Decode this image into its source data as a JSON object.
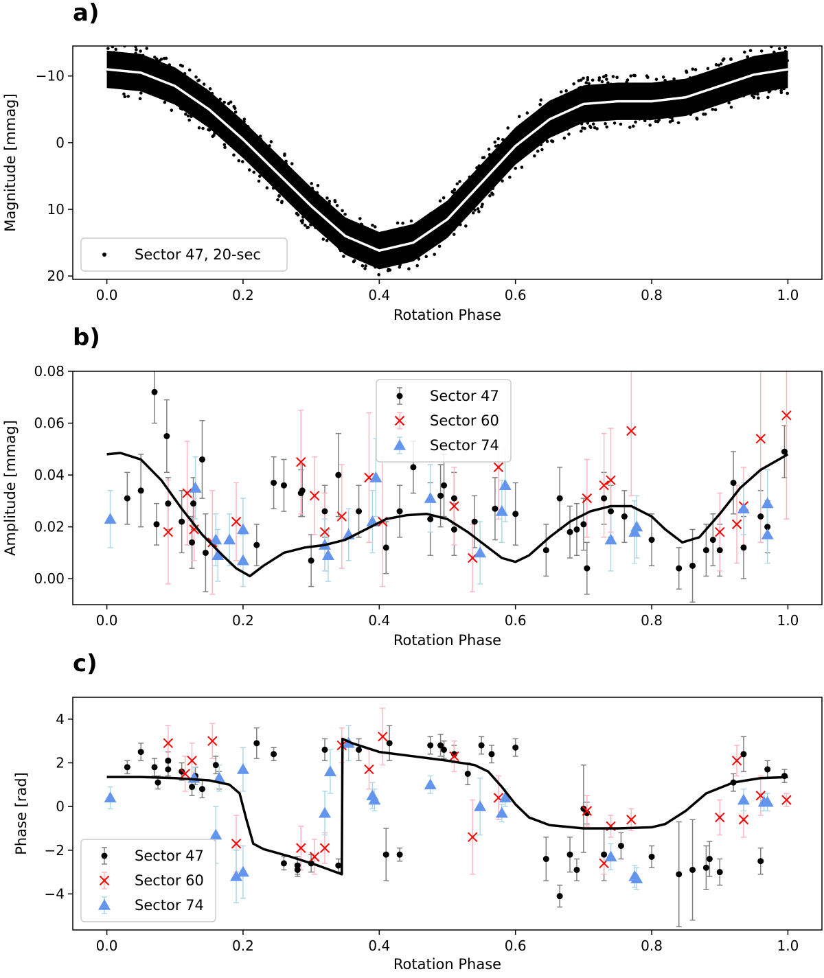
{
  "chart_data": [
    {
      "panel": "a)",
      "type": "scatter",
      "xlabel": "Rotation Phase",
      "ylabel": "Magnitude [mmag]",
      "xlim": [
        -0.05,
        1.05
      ],
      "ylim": [
        20.5,
        -14.5
      ],
      "y_inverted": true,
      "xticks": [
        0.0,
        0.2,
        0.4,
        0.6,
        0.8,
        1.0
      ],
      "xtick_labels": [
        "0.0",
        "0.2",
        "0.4",
        "0.6",
        "0.8",
        "1.0"
      ],
      "yticks": [
        -10,
        0,
        10,
        20
      ],
      "ytick_labels": [
        "−10",
        "0",
        "10",
        "20"
      ],
      "legend": {
        "placement": "lower-left",
        "entries": [
          "Sector 47, 20-sec"
        ]
      },
      "series": [
        {
          "name": "Sector 47, 20-sec",
          "style": "dense black points",
          "color": "#000000"
        }
      ],
      "model_curve": {
        "color": "#ffffff",
        "x": [
          0.0,
          0.05,
          0.1,
          0.15,
          0.2,
          0.25,
          0.3,
          0.35,
          0.4,
          0.45,
          0.5,
          0.55,
          0.6,
          0.65,
          0.7,
          0.75,
          0.8,
          0.85,
          0.9,
          0.95,
          1.0
        ],
        "y": [
          -11.0,
          -10.5,
          -8.5,
          -5.0,
          -0.5,
          4.5,
          9.5,
          14.0,
          16.2,
          15.0,
          11.5,
          6.0,
          0.5,
          -3.5,
          -5.8,
          -6.2,
          -6.2,
          -6.8,
          -8.5,
          -10.2,
          -11.0
        ]
      }
    },
    {
      "panel": "b)",
      "type": "scatter",
      "xlabel": "Rotation Phase",
      "ylabel": "Amplitude [mmag]",
      "xlim": [
        -0.05,
        1.05
      ],
      "ylim": [
        -0.01,
        0.08
      ],
      "xticks": [
        0.0,
        0.2,
        0.4,
        0.6,
        0.8,
        1.0
      ],
      "xtick_labels": [
        "0.0",
        "0.2",
        "0.4",
        "0.6",
        "0.8",
        "1.0"
      ],
      "yticks": [
        0.0,
        0.02,
        0.04,
        0.06,
        0.08
      ],
      "ytick_labels": [
        "0.00",
        "0.02",
        "0.04",
        "0.06",
        "0.08"
      ],
      "legend": {
        "placement": "upper-center",
        "entries": [
          "Sector 47",
          "Sector 60",
          "Sector 74"
        ]
      },
      "series": [
        {
          "name": "Sector 47",
          "marker": "dot",
          "color": "#000000",
          "errcolor": "#808080",
          "x": [
            0.03,
            0.05,
            0.07,
            0.073,
            0.088,
            0.09,
            0.11,
            0.125,
            0.127,
            0.14,
            0.145,
            0.22,
            0.245,
            0.26,
            0.285,
            0.287,
            0.3,
            0.32,
            0.34,
            0.37,
            0.41,
            0.43,
            0.45,
            0.475,
            0.49,
            0.495,
            0.51,
            0.51,
            0.54,
            0.57,
            0.6,
            0.645,
            0.665,
            0.68,
            0.69,
            0.7,
            0.705,
            0.73,
            0.74,
            0.76,
            0.8,
            0.84,
            0.86,
            0.88,
            0.89,
            0.9,
            0.92,
            0.935,
            0.96,
            0.97,
            0.995
          ],
          "y": [
            0.031,
            0.034,
            0.072,
            0.021,
            0.055,
            0.029,
            0.022,
            0.014,
            0.029,
            0.046,
            0.01,
            0.013,
            0.037,
            0.036,
            0.033,
            0.034,
            0.007,
            0.026,
            0.04,
            0.026,
            0.012,
            0.026,
            0.043,
            0.023,
            0.032,
            0.036,
            0.031,
            0.019,
            0.022,
            0.027,
            0.025,
            0.011,
            0.031,
            0.018,
            0.019,
            0.021,
            0.004,
            0.031,
            0.026,
            0.024,
            0.015,
            0.004,
            0.005,
            0.011,
            0.015,
            0.011,
            0.037,
            0.012,
            0.024,
            0.02,
            0.049
          ],
          "err": [
            0.01,
            0.014,
            0.012,
            0.008,
            0.014,
            0.01,
            0.012,
            0.01,
            0.01,
            0.015,
            0.015,
            0.008,
            0.01,
            0.01,
            0.009,
            0.01,
            0.01,
            0.01,
            0.016,
            0.01,
            0.01,
            0.01,
            0.01,
            0.014,
            0.012,
            0.012,
            0.01,
            0.01,
            0.01,
            0.012,
            0.012,
            0.01,
            0.012,
            0.01,
            0.01,
            0.01,
            0.01,
            0.01,
            0.01,
            0.01,
            0.01,
            0.008,
            0.014,
            0.01,
            0.01,
            0.01,
            0.012,
            0.012,
            0.01,
            0.01,
            0.01
          ]
        },
        {
          "name": "Sector 60",
          "marker": "x",
          "color": "#ff0000",
          "errcolor": "#ffb6c1",
          "x": [
            0.09,
            0.118,
            0.128,
            0.155,
            0.19,
            0.285,
            0.305,
            0.32,
            0.345,
            0.385,
            0.405,
            0.51,
            0.537,
            0.575,
            0.705,
            0.73,
            0.74,
            0.77,
            0.9,
            0.925,
            0.935,
            0.96,
            0.998
          ],
          "y": [
            0.018,
            0.033,
            0.019,
            0.014,
            0.022,
            0.045,
            0.032,
            0.018,
            0.024,
            0.039,
            0.022,
            0.028,
            0.008,
            0.043,
            0.031,
            0.036,
            0.038,
            0.057,
            0.018,
            0.021,
            0.028,
            0.054,
            0.063
          ],
          "err": [
            0.02,
            0.02,
            0.012,
            0.02,
            0.015,
            0.02,
            0.015,
            0.015,
            0.02,
            0.025,
            0.025,
            0.015,
            0.013,
            0.02,
            0.015,
            0.02,
            0.02,
            0.025,
            0.015,
            0.015,
            0.015,
            0.04,
            0.04
          ]
        },
        {
          "name": "Sector 74",
          "marker": "triangle",
          "color": "#6495ed",
          "errcolor": "#add8e6",
          "x": [
            0.005,
            0.13,
            0.16,
            0.163,
            0.18,
            0.2,
            0.2,
            0.32,
            0.325,
            0.355,
            0.39,
            0.395,
            0.475,
            0.548,
            0.58,
            0.585,
            0.74,
            0.775,
            0.778,
            0.935,
            0.97,
            0.97
          ],
          "y": [
            0.023,
            0.035,
            0.015,
            0.009,
            0.015,
            0.019,
            0.007,
            0.013,
            0.009,
            0.017,
            0.022,
            0.039,
            0.031,
            0.01,
            0.026,
            0.036,
            0.015,
            0.018,
            0.02,
            0.027,
            0.017,
            0.029
          ],
          "err": [
            0.011,
            0.012,
            0.01,
            0.01,
            0.01,
            0.012,
            0.01,
            0.01,
            0.01,
            0.01,
            0.012,
            0.015,
            0.013,
            0.012,
            0.012,
            0.014,
            0.012,
            0.012,
            0.012,
            0.01,
            0.011,
            0.013
          ]
        }
      ],
      "model_curve": {
        "color": "#000000",
        "x": [
          0.0,
          0.02,
          0.05,
          0.08,
          0.11,
          0.14,
          0.17,
          0.19,
          0.21,
          0.23,
          0.26,
          0.29,
          0.32,
          0.35,
          0.38,
          0.41,
          0.44,
          0.47,
          0.5,
          0.53,
          0.56,
          0.58,
          0.6,
          0.62,
          0.65,
          0.68,
          0.71,
          0.74,
          0.77,
          0.8,
          0.82,
          0.845,
          0.87,
          0.9,
          0.93,
          0.96,
          1.0
        ],
        "y": [
          0.048,
          0.0485,
          0.046,
          0.038,
          0.027,
          0.017,
          0.009,
          0.004,
          0.001,
          0.005,
          0.01,
          0.012,
          0.013,
          0.015,
          0.019,
          0.023,
          0.0245,
          0.025,
          0.023,
          0.018,
          0.012,
          0.008,
          0.0065,
          0.009,
          0.016,
          0.022,
          0.026,
          0.028,
          0.028,
          0.024,
          0.019,
          0.014,
          0.016,
          0.025,
          0.035,
          0.042,
          0.048
        ]
      }
    },
    {
      "panel": "c)",
      "type": "scatter",
      "xlabel": "Rotation Phase",
      "ylabel": "Phase [rad]",
      "xlim": [
        -0.05,
        1.05
      ],
      "ylim": [
        -5.65,
        5.0
      ],
      "xticks": [
        0.0,
        0.2,
        0.4,
        0.6,
        0.8,
        1.0
      ],
      "xtick_labels": [
        "0.0",
        "0.2",
        "0.4",
        "0.6",
        "0.8",
        "1.0"
      ],
      "yticks": [
        -4,
        -2,
        0,
        2,
        4
      ],
      "ytick_labels": [
        "−4",
        "−2",
        "0",
        "2",
        "4"
      ],
      "legend": {
        "placement": "lower-left",
        "entries": [
          "Sector 47",
          "Sector 60",
          "Sector 74"
        ]
      },
      "series": [
        {
          "name": "Sector 47",
          "marker": "dot",
          "color": "#000000",
          "errcolor": "#808080",
          "x": [
            0.03,
            0.05,
            0.07,
            0.075,
            0.09,
            0.09,
            0.11,
            0.125,
            0.13,
            0.14,
            0.16,
            0.165,
            0.22,
            0.245,
            0.26,
            0.28,
            0.28,
            0.3,
            0.32,
            0.34,
            0.37,
            0.41,
            0.415,
            0.43,
            0.475,
            0.49,
            0.495,
            0.51,
            0.53,
            0.55,
            0.565,
            0.6,
            0.645,
            0.665,
            0.68,
            0.69,
            0.7,
            0.705,
            0.73,
            0.755,
            0.8,
            0.84,
            0.86,
            0.88,
            0.885,
            0.9,
            0.92,
            0.935,
            0.96,
            0.97,
            0.995
          ],
          "y": [
            1.8,
            2.5,
            1.8,
            1.1,
            2.1,
            1.7,
            1.6,
            0.9,
            1.4,
            0.8,
            1.9,
            1.2,
            2.9,
            2.4,
            -2.6,
            -2.7,
            -2.9,
            -2.6,
            2.6,
            -2.7,
            2.6,
            -2.2,
            2.9,
            -2.2,
            2.8,
            2.8,
            2.6,
            2.4,
            1.5,
            2.8,
            2.4,
            2.7,
            -2.4,
            -4.1,
            -2.2,
            -2.9,
            -0.1,
            -0.3,
            -2.2,
            -1.8,
            -2.3,
            -3.1,
            -2.9,
            -2.8,
            -2.4,
            -3.0,
            1.1,
            2.4,
            -2.5,
            1.7,
            1.4
          ],
          "err": [
            0.3,
            0.4,
            0.4,
            0.3,
            0.4,
            0.3,
            0.4,
            0.4,
            0.4,
            0.4,
            0.4,
            0.4,
            0.7,
            0.3,
            0.3,
            0.4,
            0.3,
            0.4,
            0.5,
            0.3,
            0.5,
            1.2,
            0.8,
            0.3,
            0.4,
            0.5,
            0.4,
            0.4,
            0.5,
            0.4,
            0.4,
            0.4,
            1.0,
            0.5,
            0.8,
            0.5,
            2.0,
            0.5,
            1.2,
            0.6,
            0.5,
            2.4,
            2.3,
            1.0,
            0.8,
            0.6,
            0.4,
            0.8,
            0.6,
            0.4,
            0.3
          ]
        },
        {
          "name": "Sector 60",
          "marker": "x",
          "color": "#ff0000",
          "errcolor": "#ffb6c1",
          "x": [
            0.09,
            0.115,
            0.125,
            0.155,
            0.19,
            0.285,
            0.305,
            0.32,
            0.345,
            0.385,
            0.405,
            0.51,
            0.537,
            0.575,
            0.705,
            0.73,
            0.74,
            0.77,
            0.9,
            0.925,
            0.935,
            0.96,
            0.998
          ],
          "y": [
            2.9,
            1.5,
            2.1,
            3.0,
            -1.7,
            -1.9,
            -2.3,
            -1.9,
            2.8,
            1.7,
            3.2,
            2.3,
            -1.4,
            0.4,
            -0.2,
            -2.6,
            -0.9,
            -0.6,
            -0.5,
            2.1,
            -0.6,
            0.5,
            0.3
          ],
          "err": [
            0.8,
            0.8,
            0.8,
            0.8,
            1.3,
            1.0,
            0.8,
            0.7,
            0.8,
            0.9,
            1.3,
            0.7,
            1.7,
            1.0,
            0.7,
            0.5,
            0.5,
            0.5,
            0.8,
            0.7,
            0.8,
            0.9,
            0.3
          ]
        },
        {
          "name": "Sector 74",
          "marker": "triangle",
          "color": "#6495ed",
          "errcolor": "#add8e6",
          "x": [
            0.005,
            0.128,
            0.16,
            0.165,
            0.19,
            0.2,
            0.2,
            0.32,
            0.328,
            0.355,
            0.39,
            0.393,
            0.475,
            0.548,
            0.58,
            0.585,
            0.74,
            0.775,
            0.778,
            0.935,
            0.965,
            0.97
          ],
          "y": [
            0.4,
            1.3,
            -1.3,
            1.3,
            -3.2,
            -3.0,
            1.7,
            -0.3,
            1.6,
            2.9,
            0.5,
            0.3,
            1.0,
            0.0,
            -0.3,
            0.4,
            -2.3,
            -3.2,
            -3.3,
            0.3,
            0.2,
            0.2
          ],
          "err": [
            0.5,
            0.5,
            1.3,
            0.6,
            1.2,
            1.2,
            1.0,
            1.0,
            1.0,
            0.8,
            0.6,
            0.5,
            0.4,
            1.3,
            0.4,
            0.4,
            0.6,
            0.5,
            0.5,
            0.5,
            0.4,
            0.4
          ]
        }
      ],
      "model_curve": {
        "color": "#000000",
        "x": [
          0.0,
          0.05,
          0.1,
          0.15,
          0.18,
          0.195,
          0.205,
          0.215,
          0.23,
          0.27,
          0.31,
          0.345,
          0.346,
          0.36,
          0.4,
          0.45,
          0.5,
          0.54,
          0.56,
          0.58,
          0.6,
          0.62,
          0.65,
          0.7,
          0.75,
          0.8,
          0.82,
          0.85,
          0.88,
          0.92,
          0.96,
          1.0
        ],
        "y": [
          1.35,
          1.35,
          1.3,
          1.2,
          1.0,
          0.6,
          -0.6,
          -1.7,
          -1.95,
          -2.3,
          -2.7,
          -3.1,
          3.1,
          2.9,
          2.5,
          2.3,
          2.1,
          1.9,
          1.6,
          0.9,
          0.1,
          -0.5,
          -0.85,
          -1.0,
          -1.0,
          -0.95,
          -0.8,
          -0.2,
          0.6,
          1.1,
          1.3,
          1.35
        ]
      }
    }
  ]
}
